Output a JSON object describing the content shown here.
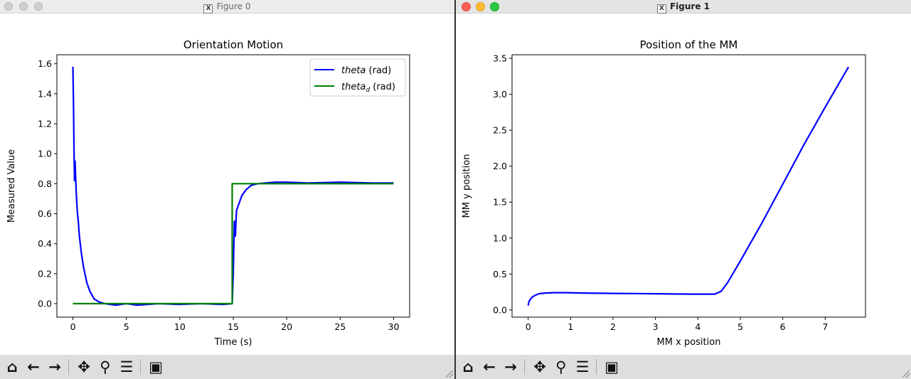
{
  "windows": [
    {
      "title": "Figure 0",
      "chart_data": {
        "type": "line",
        "title": "Orientation Motion",
        "xlabel": "Time (s)",
        "ylabel": "Measured Value",
        "xlim": [
          -1.5,
          31.5
        ],
        "ylim": [
          -0.09,
          1.66
        ],
        "xticks": [
          "0",
          "5",
          "10",
          "15",
          "20",
          "25",
          "30"
        ],
        "yticks": [
          "0.0",
          "0.2",
          "0.4",
          "0.6",
          "0.8",
          "1.0",
          "1.2",
          "1.4",
          "1.6"
        ],
        "legend_position": "top-right",
        "series": [
          {
            "name": "theta",
            "name_sub": "",
            "unit": " (rad)",
            "color": "#0000ff",
            "x": [
              0,
              0.05,
              0.1,
              0.15,
              0.2,
              0.3,
              0.4,
              0.5,
              0.6,
              0.8,
              1.0,
              1.3,
              1.6,
              2.0,
              2.5,
              3.0,
              4.0,
              5.0,
              6.0,
              8.0,
              10.0,
              12.0,
              14.0,
              14.9,
              15.0,
              15.1,
              15.2,
              15.3,
              15.5,
              15.8,
              16.2,
              16.7,
              17.3,
              18.0,
              19.0,
              20.0,
              22.0,
              25.0,
              28.0,
              30.0
            ],
            "y": [
              1.58,
              1.35,
              1.05,
              0.82,
              0.95,
              0.75,
              0.62,
              0.55,
              0.45,
              0.33,
              0.24,
              0.14,
              0.08,
              0.03,
              0.01,
              0.0,
              -0.01,
              0.0,
              -0.01,
              0.0,
              -0.005,
              0.0,
              -0.005,
              0.0,
              0.2,
              0.55,
              0.45,
              0.62,
              0.66,
              0.72,
              0.76,
              0.79,
              0.8,
              0.805,
              0.81,
              0.81,
              0.805,
              0.81,
              0.805,
              0.805
            ]
          },
          {
            "name": "theta",
            "name_sub": "d",
            "unit": " (rad)",
            "color": "#008000",
            "x": [
              0,
              14.9,
              14.9,
              30.0
            ],
            "y": [
              0.0,
              0.0,
              0.8,
              0.8
            ]
          }
        ]
      }
    },
    {
      "title": "Figure 1",
      "chart_data": {
        "type": "line",
        "title": "Position of the MM",
        "xlabel": "MM x position",
        "ylabel": "MM y position",
        "xlim": [
          -0.38,
          7.95
        ],
        "ylim": [
          -0.1,
          3.55
        ],
        "xticks": [
          "0",
          "1",
          "2",
          "3",
          "4",
          "5",
          "6",
          "7"
        ],
        "yticks": [
          "0.0",
          "0.5",
          "1.0",
          "1.5",
          "2.0",
          "2.5",
          "3.0",
          "3.5"
        ],
        "series": [
          {
            "name": "",
            "color": "#0000ff",
            "x": [
              0,
              0.02,
              0.08,
              0.15,
              0.25,
              0.4,
              0.6,
              0.9,
              1.3,
              2.0,
              3.0,
              3.8,
              4.4,
              4.55,
              4.7,
              5.0,
              5.5,
              6.0,
              6.5,
              7.0,
              7.55
            ],
            "y": [
              0.06,
              0.12,
              0.17,
              0.2,
              0.225,
              0.235,
              0.24,
              0.24,
              0.235,
              0.23,
              0.225,
              0.22,
              0.22,
              0.26,
              0.38,
              0.68,
              1.2,
              1.75,
              2.3,
              2.82,
              3.38
            ]
          }
        ]
      }
    }
  ],
  "toolbar_icons": [
    "home-icon",
    "back-arrow-icon",
    "forward-arrow-icon",
    "pan-icon",
    "zoom-icon",
    "configure-subplots-icon",
    "save-icon"
  ]
}
